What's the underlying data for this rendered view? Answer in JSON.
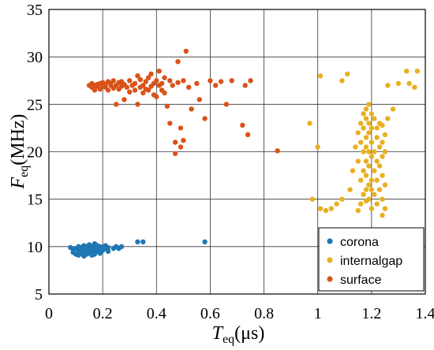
{
  "chart_data": {
    "type": "scatter",
    "grid": true,
    "legend_position": "bottom-right",
    "xlim": [
      0,
      1.4
    ],
    "ylim": [
      5,
      35
    ],
    "xticks": [
      0,
      0.2,
      0.4,
      0.6,
      0.8,
      1,
      1.2,
      1.4
    ],
    "yticks": [
      5,
      10,
      15,
      20,
      25,
      30,
      35
    ],
    "xtick_labels": [
      "0",
      "0.2",
      "0.4",
      "0.6",
      "0.8",
      "1",
      "1.2",
      "1.4"
    ],
    "ytick_labels": [
      "5",
      "10",
      "15",
      "20",
      "25",
      "30",
      "35"
    ],
    "xlabel": {
      "main": "T",
      "sub": "eq",
      "unit": "(μs)"
    },
    "ylabel": {
      "main": "F",
      "sub": "eq",
      "unit": "(MHz)"
    },
    "series": [
      {
        "name": "corona",
        "color": "#1f77b4",
        "points": [
          [
            0.08,
            9.9
          ],
          [
            0.09,
            9.7
          ],
          [
            0.09,
            9.4
          ],
          [
            0.1,
            9.8
          ],
          [
            0.1,
            9.2
          ],
          [
            0.11,
            10.0
          ],
          [
            0.11,
            9.5
          ],
          [
            0.11,
            9.1
          ],
          [
            0.12,
            9.9
          ],
          [
            0.12,
            9.6
          ],
          [
            0.12,
            9.3
          ],
          [
            0.13,
            10.1
          ],
          [
            0.13,
            9.7
          ],
          [
            0.13,
            9.4
          ],
          [
            0.13,
            9.0
          ],
          [
            0.14,
            10.0
          ],
          [
            0.14,
            9.8
          ],
          [
            0.14,
            9.5
          ],
          [
            0.14,
            9.2
          ],
          [
            0.15,
            10.2
          ],
          [
            0.15,
            9.9
          ],
          [
            0.15,
            9.6
          ],
          [
            0.15,
            9.3
          ],
          [
            0.16,
            10.0
          ],
          [
            0.16,
            9.7
          ],
          [
            0.16,
            9.4
          ],
          [
            0.16,
            9.1
          ],
          [
            0.17,
            10.3
          ],
          [
            0.17,
            9.9
          ],
          [
            0.17,
            9.6
          ],
          [
            0.17,
            9.2
          ],
          [
            0.18,
            10.1
          ],
          [
            0.18,
            9.8
          ],
          [
            0.18,
            9.5
          ],
          [
            0.19,
            10.0
          ],
          [
            0.19,
            9.7
          ],
          [
            0.19,
            9.3
          ],
          [
            0.2,
            9.9
          ],
          [
            0.2,
            9.6
          ],
          [
            0.21,
            10.1
          ],
          [
            0.21,
            9.8
          ],
          [
            0.22,
            9.5
          ],
          [
            0.22,
            9.9
          ],
          [
            0.24,
            9.8
          ],
          [
            0.25,
            10.0
          ],
          [
            0.26,
            9.8
          ],
          [
            0.27,
            10.0
          ],
          [
            0.33,
            10.5
          ],
          [
            0.35,
            10.5
          ],
          [
            0.58,
            10.5
          ]
        ]
      },
      {
        "name": "internalgap",
        "color": "#e8b020",
        "points": [
          [
            0.97,
            23.0
          ],
          [
            0.98,
            15.0
          ],
          [
            1.0,
            20.5
          ],
          [
            1.01,
            14.0
          ],
          [
            1.01,
            28.0
          ],
          [
            1.03,
            13.8
          ],
          [
            1.05,
            14.0
          ],
          [
            1.07,
            14.5
          ],
          [
            1.09,
            15.0
          ],
          [
            1.09,
            27.5
          ],
          [
            1.11,
            28.2
          ],
          [
            1.12,
            16.0
          ],
          [
            1.13,
            18.0
          ],
          [
            1.14,
            20.5
          ],
          [
            1.15,
            13.8
          ],
          [
            1.15,
            19.0
          ],
          [
            1.15,
            22.0
          ],
          [
            1.16,
            14.5
          ],
          [
            1.16,
            17.0
          ],
          [
            1.16,
            21.0
          ],
          [
            1.16,
            23.0
          ],
          [
            1.17,
            15.5
          ],
          [
            1.17,
            18.0
          ],
          [
            1.17,
            20.0
          ],
          [
            1.17,
            22.5
          ],
          [
            1.17,
            24.0
          ],
          [
            1.18,
            14.8
          ],
          [
            1.18,
            16.0
          ],
          [
            1.18,
            17.5
          ],
          [
            1.18,
            19.0
          ],
          [
            1.18,
            20.5
          ],
          [
            1.18,
            21.5
          ],
          [
            1.18,
            23.5
          ],
          [
            1.18,
            24.5
          ],
          [
            1.19,
            15.0
          ],
          [
            1.19,
            16.5
          ],
          [
            1.19,
            18.5
          ],
          [
            1.19,
            20.0
          ],
          [
            1.19,
            22.0
          ],
          [
            1.19,
            23.0
          ],
          [
            1.19,
            25.0
          ],
          [
            1.2,
            14.0
          ],
          [
            1.2,
            16.0
          ],
          [
            1.2,
            17.0
          ],
          [
            1.2,
            19.5
          ],
          [
            1.2,
            21.0
          ],
          [
            1.2,
            22.5
          ],
          [
            1.2,
            24.0
          ],
          [
            1.21,
            15.5
          ],
          [
            1.21,
            18.0
          ],
          [
            1.21,
            20.0
          ],
          [
            1.21,
            23.5
          ],
          [
            1.22,
            14.5
          ],
          [
            1.22,
            17.0
          ],
          [
            1.22,
            19.0
          ],
          [
            1.22,
            21.5
          ],
          [
            1.22,
            22.5
          ],
          [
            1.23,
            16.0
          ],
          [
            1.23,
            18.5
          ],
          [
            1.23,
            20.5
          ],
          [
            1.23,
            23.0
          ],
          [
            1.24,
            13.3
          ],
          [
            1.24,
            15.0
          ],
          [
            1.24,
            17.5
          ],
          [
            1.24,
            19.5
          ],
          [
            1.24,
            21.0
          ],
          [
            1.24,
            22.8
          ],
          [
            1.25,
            14.0
          ],
          [
            1.25,
            16.5
          ],
          [
            1.25,
            20.0
          ],
          [
            1.25,
            21.8
          ],
          [
            1.26,
            23.5
          ],
          [
            1.26,
            27.0
          ],
          [
            1.28,
            24.5
          ],
          [
            1.3,
            27.2
          ],
          [
            1.33,
            28.5
          ],
          [
            1.34,
            27.2
          ],
          [
            1.36,
            26.8
          ],
          [
            1.37,
            28.5
          ]
        ]
      },
      {
        "name": "surface",
        "color": "#d95319",
        "points": [
          [
            0.15,
            27.0
          ],
          [
            0.16,
            26.8
          ],
          [
            0.16,
            27.2
          ],
          [
            0.17,
            26.5
          ],
          [
            0.17,
            27.0
          ],
          [
            0.18,
            27.1
          ],
          [
            0.18,
            26.9
          ],
          [
            0.19,
            27.2
          ],
          [
            0.19,
            26.6
          ],
          [
            0.2,
            27.0
          ],
          [
            0.2,
            27.3
          ],
          [
            0.21,
            26.8
          ],
          [
            0.21,
            27.1
          ],
          [
            0.22,
            27.4
          ],
          [
            0.22,
            26.5
          ],
          [
            0.23,
            27.0
          ],
          [
            0.23,
            27.2
          ],
          [
            0.24,
            26.7
          ],
          [
            0.24,
            27.5
          ],
          [
            0.25,
            27.0
          ],
          [
            0.25,
            25.0
          ],
          [
            0.26,
            27.3
          ],
          [
            0.26,
            26.6
          ],
          [
            0.27,
            27.4
          ],
          [
            0.27,
            26.9
          ],
          [
            0.28,
            27.1
          ],
          [
            0.28,
            25.5
          ],
          [
            0.29,
            26.8
          ],
          [
            0.3,
            27.5
          ],
          [
            0.3,
            26.3
          ],
          [
            0.31,
            27.0
          ],
          [
            0.32,
            26.5
          ],
          [
            0.32,
            27.2
          ],
          [
            0.33,
            25.0
          ],
          [
            0.33,
            28.0
          ],
          [
            0.34,
            26.8
          ],
          [
            0.34,
            27.6
          ],
          [
            0.35,
            26.2
          ],
          [
            0.35,
            27.0
          ],
          [
            0.36,
            26.6
          ],
          [
            0.36,
            27.4
          ],
          [
            0.37,
            27.8
          ],
          [
            0.37,
            26.5
          ],
          [
            0.38,
            26.9
          ],
          [
            0.38,
            28.2
          ],
          [
            0.39,
            27.2
          ],
          [
            0.39,
            26.0
          ],
          [
            0.4,
            27.5
          ],
          [
            0.4,
            25.8
          ],
          [
            0.41,
            27.0
          ],
          [
            0.41,
            28.5
          ],
          [
            0.42,
            26.5
          ],
          [
            0.42,
            27.2
          ],
          [
            0.43,
            27.8
          ],
          [
            0.43,
            26.2
          ],
          [
            0.44,
            24.8
          ],
          [
            0.45,
            27.5
          ],
          [
            0.45,
            23.0
          ],
          [
            0.46,
            27.0
          ],
          [
            0.47,
            21.0
          ],
          [
            0.47,
            19.8
          ],
          [
            0.48,
            29.5
          ],
          [
            0.48,
            27.3
          ],
          [
            0.49,
            20.5
          ],
          [
            0.49,
            22.5
          ],
          [
            0.5,
            27.5
          ],
          [
            0.5,
            21.2
          ],
          [
            0.51,
            30.6
          ],
          [
            0.52,
            26.8
          ],
          [
            0.53,
            24.5
          ],
          [
            0.55,
            27.2
          ],
          [
            0.56,
            25.5
          ],
          [
            0.58,
            23.5
          ],
          [
            0.6,
            27.5
          ],
          [
            0.62,
            27.0
          ],
          [
            0.64,
            27.4
          ],
          [
            0.66,
            25.0
          ],
          [
            0.68,
            27.5
          ],
          [
            0.72,
            22.8
          ],
          [
            0.73,
            27.0
          ],
          [
            0.74,
            21.8
          ],
          [
            0.75,
            27.5
          ],
          [
            0.85,
            20.1
          ]
        ]
      }
    ]
  }
}
